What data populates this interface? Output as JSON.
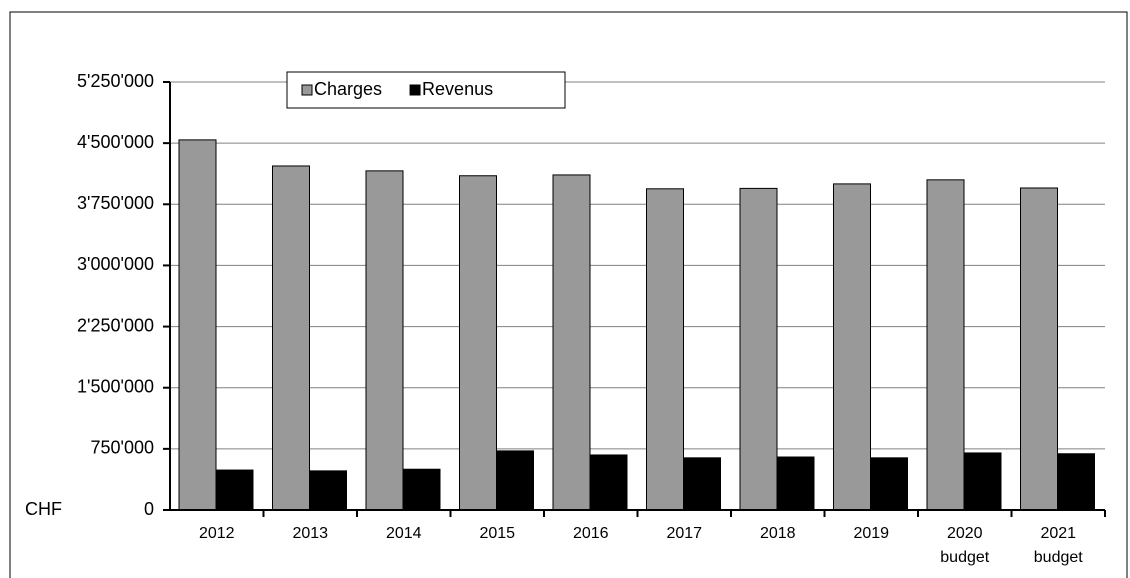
{
  "chart_data": {
    "type": "bar",
    "categories": [
      "2012",
      "2013",
      "2014",
      "2015",
      "2016",
      "2017",
      "2018",
      "2019",
      "2020 budget",
      "2021 budget"
    ],
    "series": [
      {
        "name": "Charges",
        "color": "#999999",
        "values": [
          4540000,
          4220000,
          4160000,
          4100000,
          4110000,
          3940000,
          3945000,
          4000000,
          4050000,
          3950000
        ]
      },
      {
        "name": "Revenus",
        "color": "#000000",
        "values": [
          490000,
          480000,
          500000,
          725000,
          675000,
          640000,
          650000,
          640000,
          700000,
          690000
        ]
      }
    ],
    "ylabel": "CHF",
    "ylim": [
      0,
      5250000
    ],
    "yticks": [
      0,
      {
        "value": 750000,
        "label": "750'000"
      },
      {
        "value": 1500000,
        "label": "1'500'000"
      },
      {
        "value": 2250000,
        "label": "2'250'000"
      },
      {
        "value": 3000000,
        "label": "3'000'000"
      },
      {
        "value": 3750000,
        "label": "3'750'000"
      },
      {
        "value": 4500000,
        "label": "4'500'000"
      },
      {
        "value": 5250000,
        "label": "5'250'000"
      }
    ],
    "grid": true,
    "legend": "top"
  }
}
